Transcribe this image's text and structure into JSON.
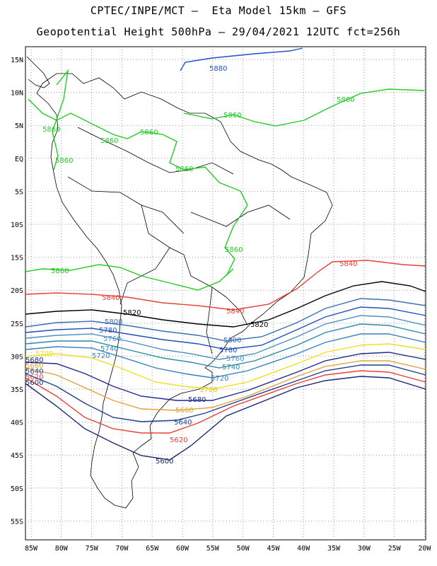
{
  "header": {
    "line1": "CPTEC/INPE/MCT –  Eta Model 15km – GFS",
    "line2": "Geopotential Height 500hPa – 29/04/2021 12UTC fct=256h"
  },
  "axes": {
    "lat_ticks": [
      "15N",
      "10N",
      "5N",
      "EQ",
      "5S",
      "10S",
      "15S",
      "20S",
      "25S",
      "30S",
      "35S",
      "40S",
      "45S",
      "50S",
      "55S"
    ],
    "lon_ticks": [
      "85W",
      "80W",
      "75W",
      "70W",
      "65W",
      "60W",
      "55W",
      "50W",
      "45W",
      "40W",
      "35W",
      "30W",
      "25W",
      "20W"
    ]
  },
  "colors": {
    "c5600": "#1a2a6c",
    "c5620": "#e8403a",
    "c5640": "#1e3f8f",
    "c5660": "#e3a23a",
    "c5680": "#1b2a8a",
    "c5700": "#f0e020",
    "c5720": "#3a7fc0",
    "c5740": "#2a8aa8",
    "c5760": "#4a90c8",
    "c5780": "#2050b8",
    "c5800": "#3b6fb5",
    "c5820": "#000000",
    "c5840": "#e8403a",
    "c5860": "#22cc22",
    "c5880": "#2050d0"
  },
  "contour_labels": [
    {
      "text": "5880",
      "color": "#2050d0"
    },
    {
      "text": "5860",
      "color": "#22cc22"
    },
    {
      "text": "5860",
      "color": "#22cc22"
    },
    {
      "text": "5860",
      "color": "#22cc22"
    },
    {
      "text": "5860",
      "color": "#22cc22"
    },
    {
      "text": "5860",
      "color": "#22cc22"
    },
    {
      "text": "5860",
      "color": "#22cc22"
    },
    {
      "text": "5860",
      "color": "#22cc22"
    },
    {
      "text": "5860",
      "color": "#22cc22"
    },
    {
      "text": "5860",
      "color": "#22cc22"
    },
    {
      "text": "5840",
      "color": "#e8403a"
    },
    {
      "text": "5840",
      "color": "#e8403a"
    },
    {
      "text": "5840",
      "color": "#e8403a"
    },
    {
      "text": "5820",
      "color": "#000000"
    },
    {
      "text": "5820",
      "color": "#000000"
    },
    {
      "text": "5800",
      "color": "#3b6fb5"
    },
    {
      "text": "5800",
      "color": "#3b6fb5"
    },
    {
      "text": "5780",
      "color": "#2050b8"
    },
    {
      "text": "5780",
      "color": "#2050b8"
    },
    {
      "text": "5760",
      "color": "#4a90c8"
    },
    {
      "text": "5760",
      "color": "#4a90c8"
    },
    {
      "text": "5740",
      "color": "#2a8aa8"
    },
    {
      "text": "5740",
      "color": "#2a8aa8"
    },
    {
      "text": "5720",
      "color": "#3a7fc0"
    },
    {
      "text": "5720",
      "color": "#3a7fc0"
    },
    {
      "text": "5700",
      "color": "#f0e020"
    },
    {
      "text": "5700",
      "color": "#e3c020"
    },
    {
      "text": "5680",
      "color": "#1b2a8a"
    },
    {
      "text": "5680",
      "color": "#1b2a8a"
    },
    {
      "text": "5660",
      "color": "#e3a23a"
    },
    {
      "text": "5660",
      "color": "#e3a23a"
    },
    {
      "text": "5640",
      "color": "#1e3f8f"
    },
    {
      "text": "5640",
      "color": "#1e3f8f"
    },
    {
      "text": "5620",
      "color": "#e8403a"
    },
    {
      "text": "5620",
      "color": "#e8403a"
    },
    {
      "text": "5600",
      "color": "#1a2a6c"
    },
    {
      "text": "5600",
      "color": "#1a2a6c"
    }
  ]
}
